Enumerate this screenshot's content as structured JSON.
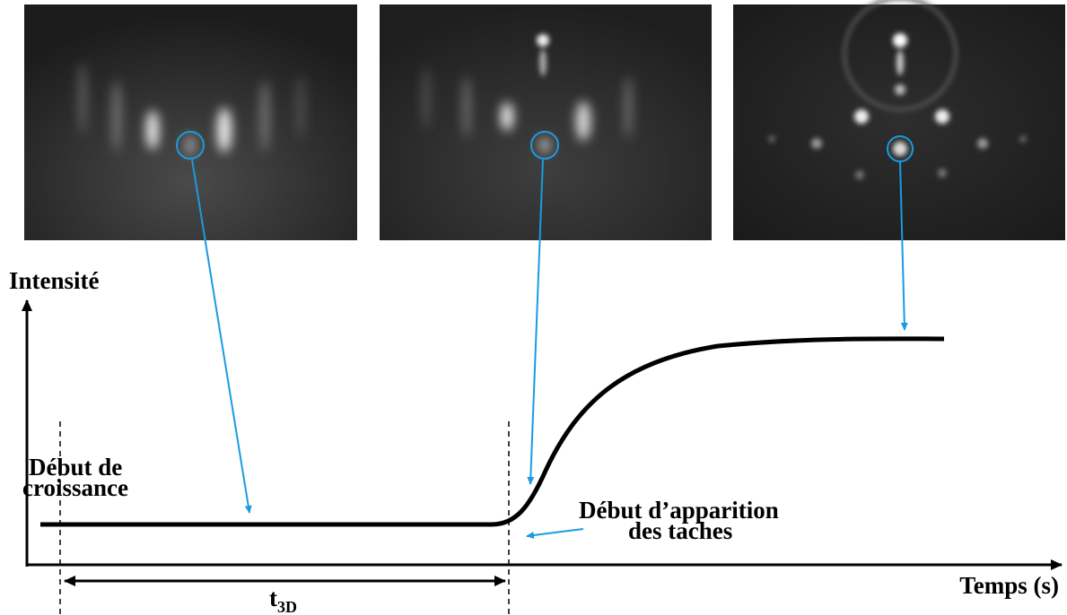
{
  "axes": {
    "y_label": "Intensité",
    "x_label": "Temps (s)"
  },
  "annotations": {
    "growth_start": [
      "Début de",
      "croissance"
    ],
    "spot_onset": [
      "Début d’apparition",
      "des taches"
    ],
    "duration": {
      "symbol": "t",
      "subscript": "3D"
    }
  }
}
